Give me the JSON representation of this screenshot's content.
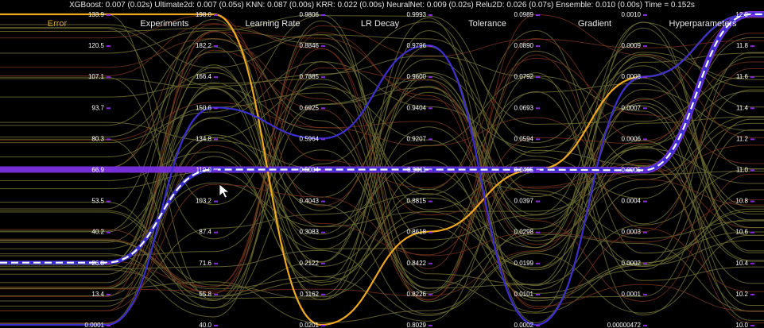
{
  "status_line": "XGBoost: 0.007 (0.02s) Ultimate2d: 0.007 (0.05s) KNN: 0.087 (0.00s) KRR: 0.022 (0.00s) NeuralNet: 0.009 (0.02s) Relu2D: 0.026 (0.07s) Ensemble: 0.010 (0.00s) Time = 0.152s",
  "colors": {
    "background": "#000000",
    "selected_axis_title": "#e0a020",
    "axis_title": "#e8e8e8",
    "tick_marker": "#8a2be2",
    "background_lines_olive": "#6b6b34",
    "background_lines_red": "#6e2f1c",
    "highlight_orange": "#f0a820",
    "highlight_blue": "#3b2fd0",
    "highlight_purple": "#7a30e0",
    "dashed_line": "#ffffff"
  },
  "icons": {
    "cursor": "mouse-pointer-icon"
  },
  "chart_data": {
    "type": "parallel-coordinates",
    "axes": [
      {
        "name": "Error",
        "selected": true,
        "ticks": [
          "0.0001",
          "13.4",
          "26.8",
          "40.2",
          "53.5",
          "66.9",
          "80.3",
          "93.7",
          "107.1",
          "120.5",
          "133.9"
        ]
      },
      {
        "name": "Experiments",
        "ticks": [
          "40.0",
          "55.8",
          "71.6",
          "87.4",
          "103.2",
          "119.0",
          "134.8",
          "150.6",
          "166.4",
          "182.2",
          "198.0"
        ]
      },
      {
        "name": "Learning Rate",
        "ticks": [
          "0.0201",
          "0.1162",
          "0.2122",
          "0.3083",
          "0.4043",
          "0.5004",
          "0.5964",
          "0.6925",
          "0.7885",
          "0.8846",
          "0.9806"
        ]
      },
      {
        "name": "LR Decay",
        "ticks": [
          "0.8029",
          "0.8226",
          "0.8422",
          "0.8618",
          "0.8815",
          "0.9011",
          "0.9207",
          "0.9404",
          "0.9600",
          "0.9796",
          "0.9993"
        ]
      },
      {
        "name": "Tolerance",
        "ticks": [
          "0.0002",
          "0.0101",
          "0.0199",
          "0.0298",
          "0.0397",
          "0.0495",
          "0.0594",
          "0.0693",
          "0.0792",
          "0.0890",
          "0.0989"
        ]
      },
      {
        "name": "Gradient",
        "ticks": [
          "0.00000472",
          "0.0001",
          "0.0002",
          "0.0003",
          "0.0004",
          "0.0005",
          "0.0006",
          "0.0007",
          "0.0008",
          "0.0009",
          "0.0010"
        ]
      },
      {
        "name": "Hyperparameters",
        "ticks": [
          "10.0",
          "10.2",
          "10.4",
          "10.6",
          "10.8",
          "11.0",
          "11.2",
          "11.4",
          "11.6",
          "11.8",
          "12.0"
        ]
      }
    ],
    "highlighted_series": [
      {
        "color_key": "highlight_orange",
        "style": "solid",
        "values": [
          133.9,
          198.0,
          0.0201,
          0.8618,
          0.0495,
          0.0008,
          12.0
        ]
      },
      {
        "color_key": "highlight_blue",
        "style": "solid",
        "values": [
          0.0001,
          150.6,
          0.5964,
          0.9796,
          0.0002,
          0.0008,
          12.0
        ]
      },
      {
        "color_key": "dashed_line",
        "style": "dashed",
        "values": [
          26.8,
          119.0,
          0.5004,
          0.9011,
          0.0495,
          0.0005,
          12.0
        ]
      }
    ],
    "background_series_count": 60
  }
}
